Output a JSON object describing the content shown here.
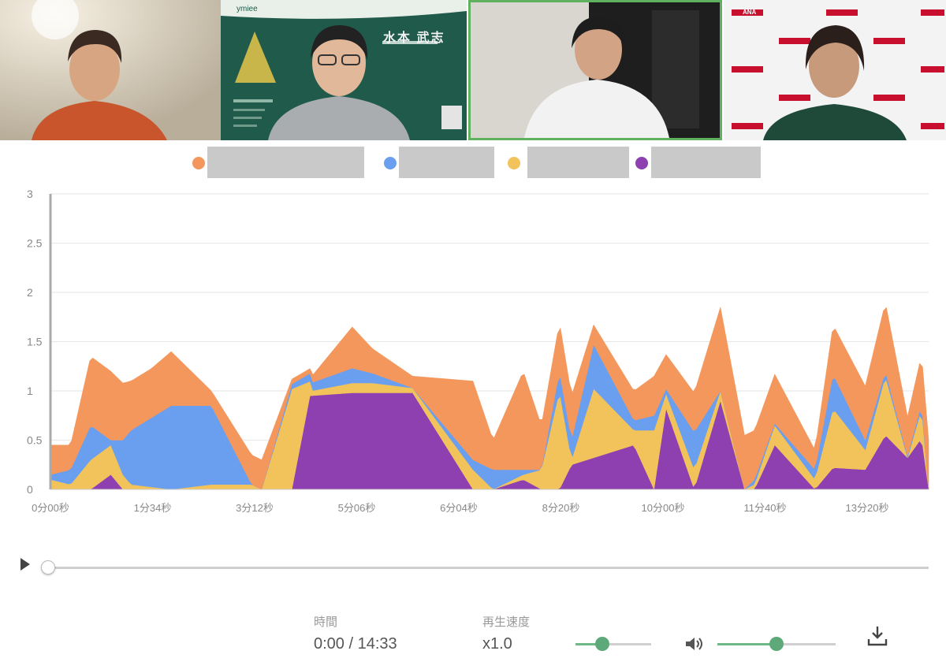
{
  "participants": [
    {
      "name_text": "",
      "slide": null
    },
    {
      "slide": {
        "title_jp": "水本 武志",
        "small_logo": "ymiee"
      }
    },
    {},
    {
      "backdrop_logo": "ANA"
    }
  ],
  "legend": {
    "items": [
      {
        "color": "#f4975c",
        "label": ""
      },
      {
        "color": "#6a9ff0",
        "label": ""
      },
      {
        "color": "#f2c35a",
        "label": ""
      },
      {
        "color": "#8e3fb0",
        "label": ""
      }
    ]
  },
  "chart_data": {
    "type": "area",
    "stacked": true,
    "ylim": [
      0,
      3
    ],
    "yticks": [
      "0",
      "0.5",
      "1",
      "1.5",
      "2",
      "2.5",
      "3"
    ],
    "xticks": [
      "0分00秒",
      "1分34秒",
      "3分12秒",
      "5分06秒",
      "6分04秒",
      "8分20秒",
      "10分00秒",
      "11分40秒",
      "13分20秒"
    ],
    "xlim_seconds": [
      0,
      873
    ],
    "grid": true,
    "series": [
      {
        "color": "#8e3fb0",
        "x": [
          0,
          40,
          60,
          72,
          78,
          240,
          258,
          300,
          320,
          360,
          420,
          440,
          470,
          488,
          506,
          518,
          580,
          600,
          612,
          640,
          666,
          690,
          700,
          720,
          760,
          778,
          810,
          830,
          852,
          866,
          873
        ],
        "values": [
          0,
          0,
          0.15,
          0,
          0,
          0,
          0.95,
          0.98,
          0.98,
          0.98,
          0,
          0,
          0.1,
          0,
          0,
          0.25,
          0.45,
          0,
          0.82,
          0,
          0.9,
          0,
          0,
          0.45,
          0,
          0.22,
          0.2,
          0.55,
          0.32,
          0.52,
          0
        ]
      },
      {
        "color": "#f2c35a",
        "x": [
          0,
          20,
          40,
          60,
          80,
          120,
          160,
          200,
          210,
          240,
          260,
          300,
          320,
          360,
          420,
          440,
          470,
          488,
          506,
          518,
          540,
          580,
          600,
          612,
          640,
          666,
          690,
          700,
          720,
          760,
          778,
          810,
          830,
          852,
          866,
          873
        ],
        "values": [
          0.1,
          0.05,
          0.3,
          0.3,
          0.05,
          0,
          0.05,
          0.05,
          0,
          1.02,
          0.05,
          0.1,
          0.1,
          0.05,
          0.2,
          0,
          0.05,
          0.2,
          1,
          0.05,
          0.7,
          0.15,
          0.6,
          0.15,
          0.2,
          0.1,
          0,
          0.05,
          0.2,
          0.1,
          0.6,
          0.2,
          0.6,
          0,
          0.3,
          0
        ]
      },
      {
        "color": "#6a9ff0",
        "x": [
          0,
          20,
          40,
          60,
          80,
          100,
          120,
          160,
          200,
          210,
          240,
          300,
          320,
          360,
          420,
          440,
          470,
          488,
          506,
          518,
          540,
          580,
          600,
          612,
          640,
          666,
          690,
          700,
          720,
          760,
          778,
          810,
          830,
          852,
          866,
          873
        ],
        "values": [
          0.05,
          0.15,
          0.35,
          0.05,
          0.55,
          0.7,
          0.85,
          0.8,
          0,
          0,
          0.05,
          0.15,
          0.1,
          0,
          0.1,
          0.2,
          0.05,
          0,
          0.2,
          0.2,
          0.45,
          0.1,
          0.15,
          0.05,
          0.38,
          0,
          0,
          0.05,
          0.02,
          0.1,
          0.35,
          0.1,
          0.05,
          0.02,
          0.05,
          0
        ]
      },
      {
        "color": "#f4975c",
        "x": [
          0,
          20,
          40,
          60,
          80,
          100,
          120,
          160,
          200,
          210,
          240,
          258,
          300,
          320,
          360,
          420,
          440,
          470,
          488,
          506,
          518,
          540,
          580,
          600,
          612,
          640,
          666,
          690,
          700,
          720,
          760,
          778,
          810,
          830,
          852,
          866,
          873
        ],
        "values": [
          0.3,
          0.25,
          0.7,
          0.7,
          0.5,
          0.5,
          0.55,
          0.15,
          0.3,
          0.3,
          0.05,
          0.05,
          0.42,
          0.25,
          0.12,
          0.8,
          0.3,
          1,
          0.45,
          0.5,
          0.45,
          0.2,
          0.3,
          0.4,
          0.35,
          0.4,
          0.85,
          0.55,
          0.5,
          0.5,
          0.2,
          0.5,
          0.55,
          0.7,
          0.4,
          0.5,
          0.5
        ]
      }
    ]
  },
  "player": {
    "progress": 0
  },
  "controls": {
    "time_label": "時間",
    "time_value": "0:00 / 14:33",
    "speed_label": "再生速度",
    "speed_value": "x1.0",
    "speed_slider_level": 0.35,
    "volume_slider_level": 0.5
  },
  "icons": {
    "volume": "volume-icon",
    "download": "download-icon",
    "play": "play-icon"
  }
}
